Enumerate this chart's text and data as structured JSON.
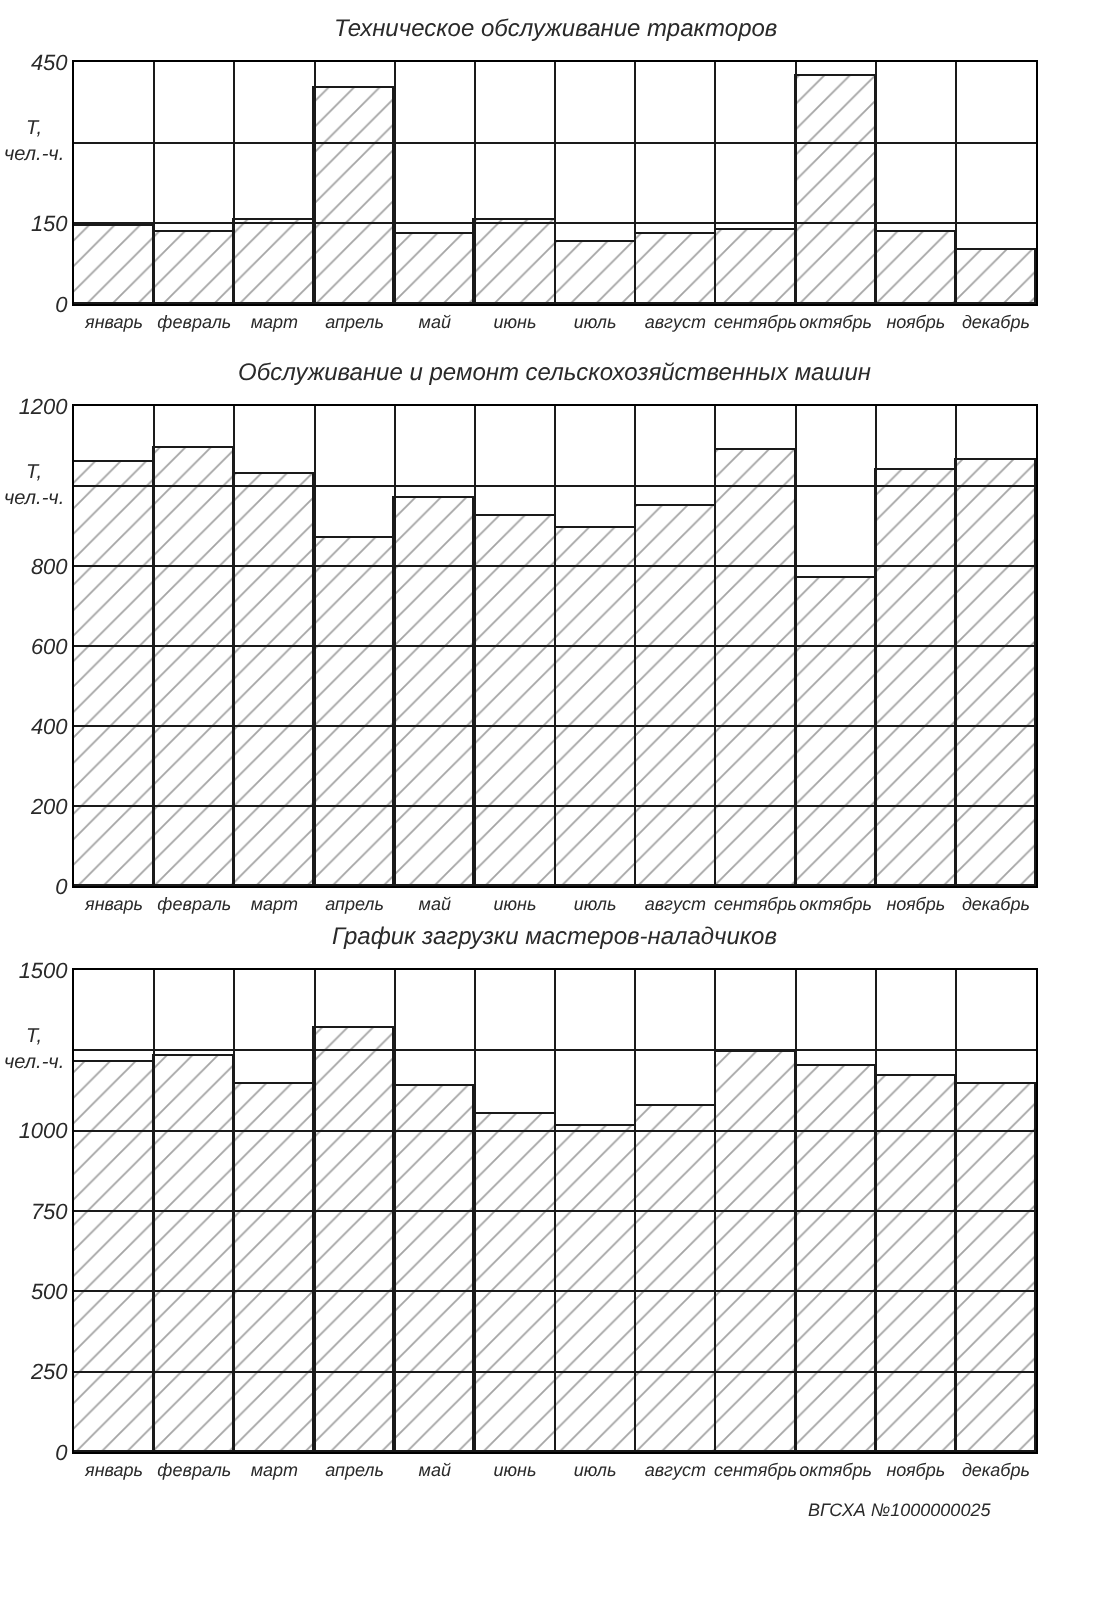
{
  "chart_data": [
    {
      "type": "bar",
      "title": "Техническое обслуживание тракторов",
      "ylabel": "Т,\nчел.-ч.",
      "categories": [
        "январь",
        "февраль",
        "март",
        "апрель",
        "май",
        "июнь",
        "июль",
        "август",
        "сентябрь",
        "октябрь",
        "ноябрь",
        "декабрь"
      ],
      "values": [
        145,
        135,
        158,
        400,
        130,
        155,
        115,
        130,
        138,
        425,
        135,
        100
      ],
      "color": "#1a1a1a",
      "ylim": [
        0,
        450
      ],
      "yticks": [
        0,
        150,
        {
          "value": 300,
          "label": null
        },
        450
      ],
      "grid": true
    },
    {
      "type": "bar",
      "title": "Обслуживание и ремонт сельскохозяйственных машин",
      "ylabel": "Т,\nчел.-ч.",
      "categories": [
        "январь",
        "февраль",
        "март",
        "апрель",
        "май",
        "июнь",
        "июль",
        "август",
        "сентябрь",
        "октябрь",
        "ноябрь",
        "декабрь"
      ],
      "values": [
        1060,
        1095,
        1030,
        870,
        970,
        925,
        895,
        950,
        1090,
        770,
        1040,
        1065
      ],
      "color": "#1a1a1a",
      "ylim": [
        0,
        1200
      ],
      "yticks": [
        0,
        200,
        400,
        600,
        800,
        {
          "value": 1000,
          "label": null
        },
        1200
      ],
      "grid": true
    },
    {
      "type": "bar",
      "title": "График загрузки мастеров-наладчиков",
      "ylabel": "Т,\nчел.-ч.",
      "categories": [
        "январь",
        "февраль",
        "март",
        "апрель",
        "май",
        "июнь",
        "июль",
        "август",
        "сентябрь",
        "октябрь",
        "ноябрь",
        "декабрь"
      ],
      "values": [
        1215,
        1235,
        1145,
        1320,
        1140,
        1055,
        1015,
        1075,
        1245,
        1200,
        1170,
        1145
      ],
      "color": "#1a1a1a",
      "ylim": [
        0,
        1500
      ],
      "yticks": [
        0,
        250,
        500,
        750,
        1000,
        {
          "value": 1250,
          "label": null
        },
        1500
      ],
      "grid": true,
      "annotations": [
        "ВГСХА №1000000025"
      ]
    }
  ]
}
